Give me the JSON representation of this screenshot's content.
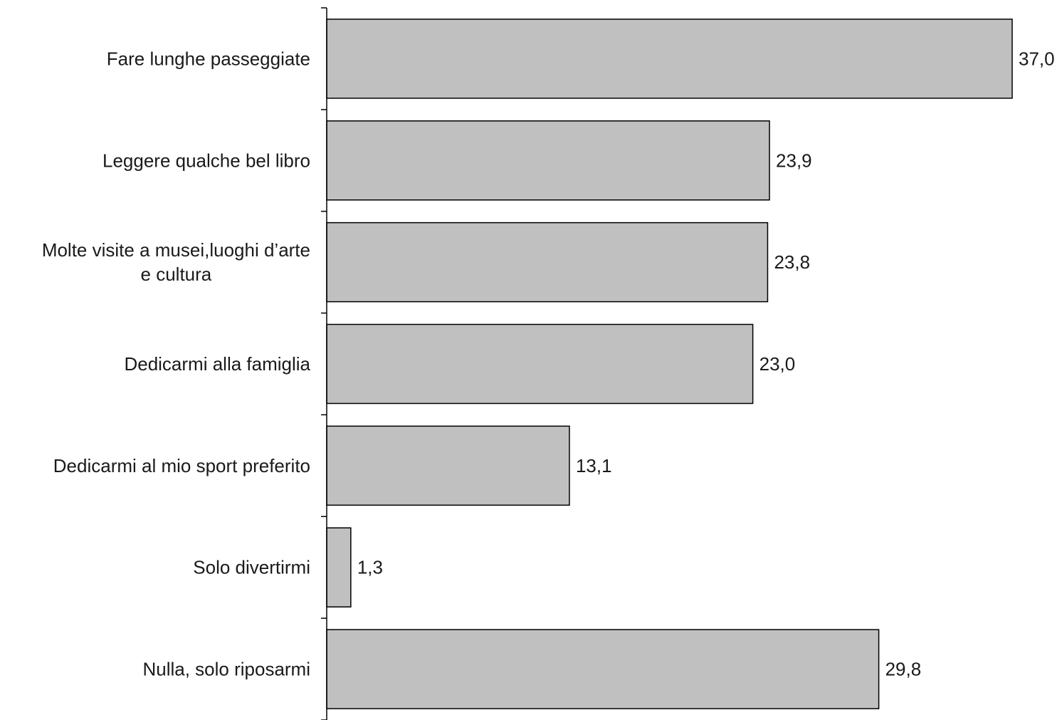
{
  "chart_data": {
    "type": "bar",
    "orientation": "horizontal",
    "categories": [
      [
        "Fare lunghe passeggiate"
      ],
      [
        "Leggere qualche bel libro"
      ],
      [
        "Molte visite a musei,luoghi d’arte",
        "e cultura"
      ],
      [
        "Dedicarmi alla famiglia"
      ],
      [
        "Dedicarmi al mio sport preferito"
      ],
      [
        "Solo divertirmi"
      ],
      [
        "Nulla, solo riposarmi"
      ]
    ],
    "values": [
      37.0,
      23.9,
      23.8,
      23.0,
      13.1,
      1.3,
      29.8
    ],
    "value_labels": [
      "37,0",
      "23,9",
      "23,8",
      "23,0",
      "13,1",
      "1,3",
      "29,8"
    ],
    "xlim": [
      0,
      37.0
    ],
    "grid": false,
    "legend": "none",
    "colors": {
      "bar_fill": "#c0c0c0",
      "bar_stroke": "#000000",
      "text": "#1a1a1a"
    }
  }
}
